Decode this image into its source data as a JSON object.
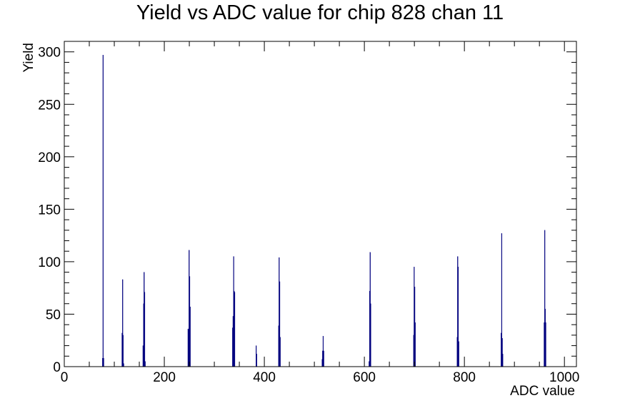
{
  "chart_data": {
    "type": "bar",
    "title": "Yield vs ADC value for chip 828 chan 11",
    "xlabel": "ADC value",
    "ylabel": "Yield",
    "xlim": [
      0,
      1024
    ],
    "ylim": [
      0,
      310
    ],
    "x_ticks": [
      0,
      200,
      400,
      600,
      800,
      1000
    ],
    "y_ticks": [
      0,
      50,
      100,
      150,
      200,
      250,
      300
    ],
    "bin_width": 1,
    "grid": false,
    "legend": "none",
    "series": [
      {
        "color": "#00007f",
        "x": [
          76,
          77,
          78,
          115,
          116,
          117,
          118,
          157,
          158,
          159,
          160,
          161,
          247,
          248,
          249,
          250,
          251,
          336,
          337,
          338,
          339,
          340,
          383,
          384,
          428,
          429,
          430,
          431,
          515,
          516,
          517,
          518,
          609,
          610,
          611,
          612,
          698,
          699,
          700,
          701,
          785,
          786,
          787,
          788,
          873,
          874,
          875,
          876,
          959,
          960,
          961,
          962
        ],
        "values": [
          8,
          297,
          8,
          32,
          83,
          30,
          3,
          20,
          60,
          90,
          71,
          5,
          36,
          35,
          111,
          86,
          57,
          37,
          48,
          105,
          72,
          71,
          20,
          12,
          39,
          104,
          81,
          28,
          7,
          15,
          29,
          15,
          5,
          72,
          109,
          60,
          30,
          95,
          76,
          42,
          28,
          105,
          95,
          24,
          32,
          127,
          27,
          12,
          42,
          130,
          55,
          42
        ]
      }
    ]
  }
}
